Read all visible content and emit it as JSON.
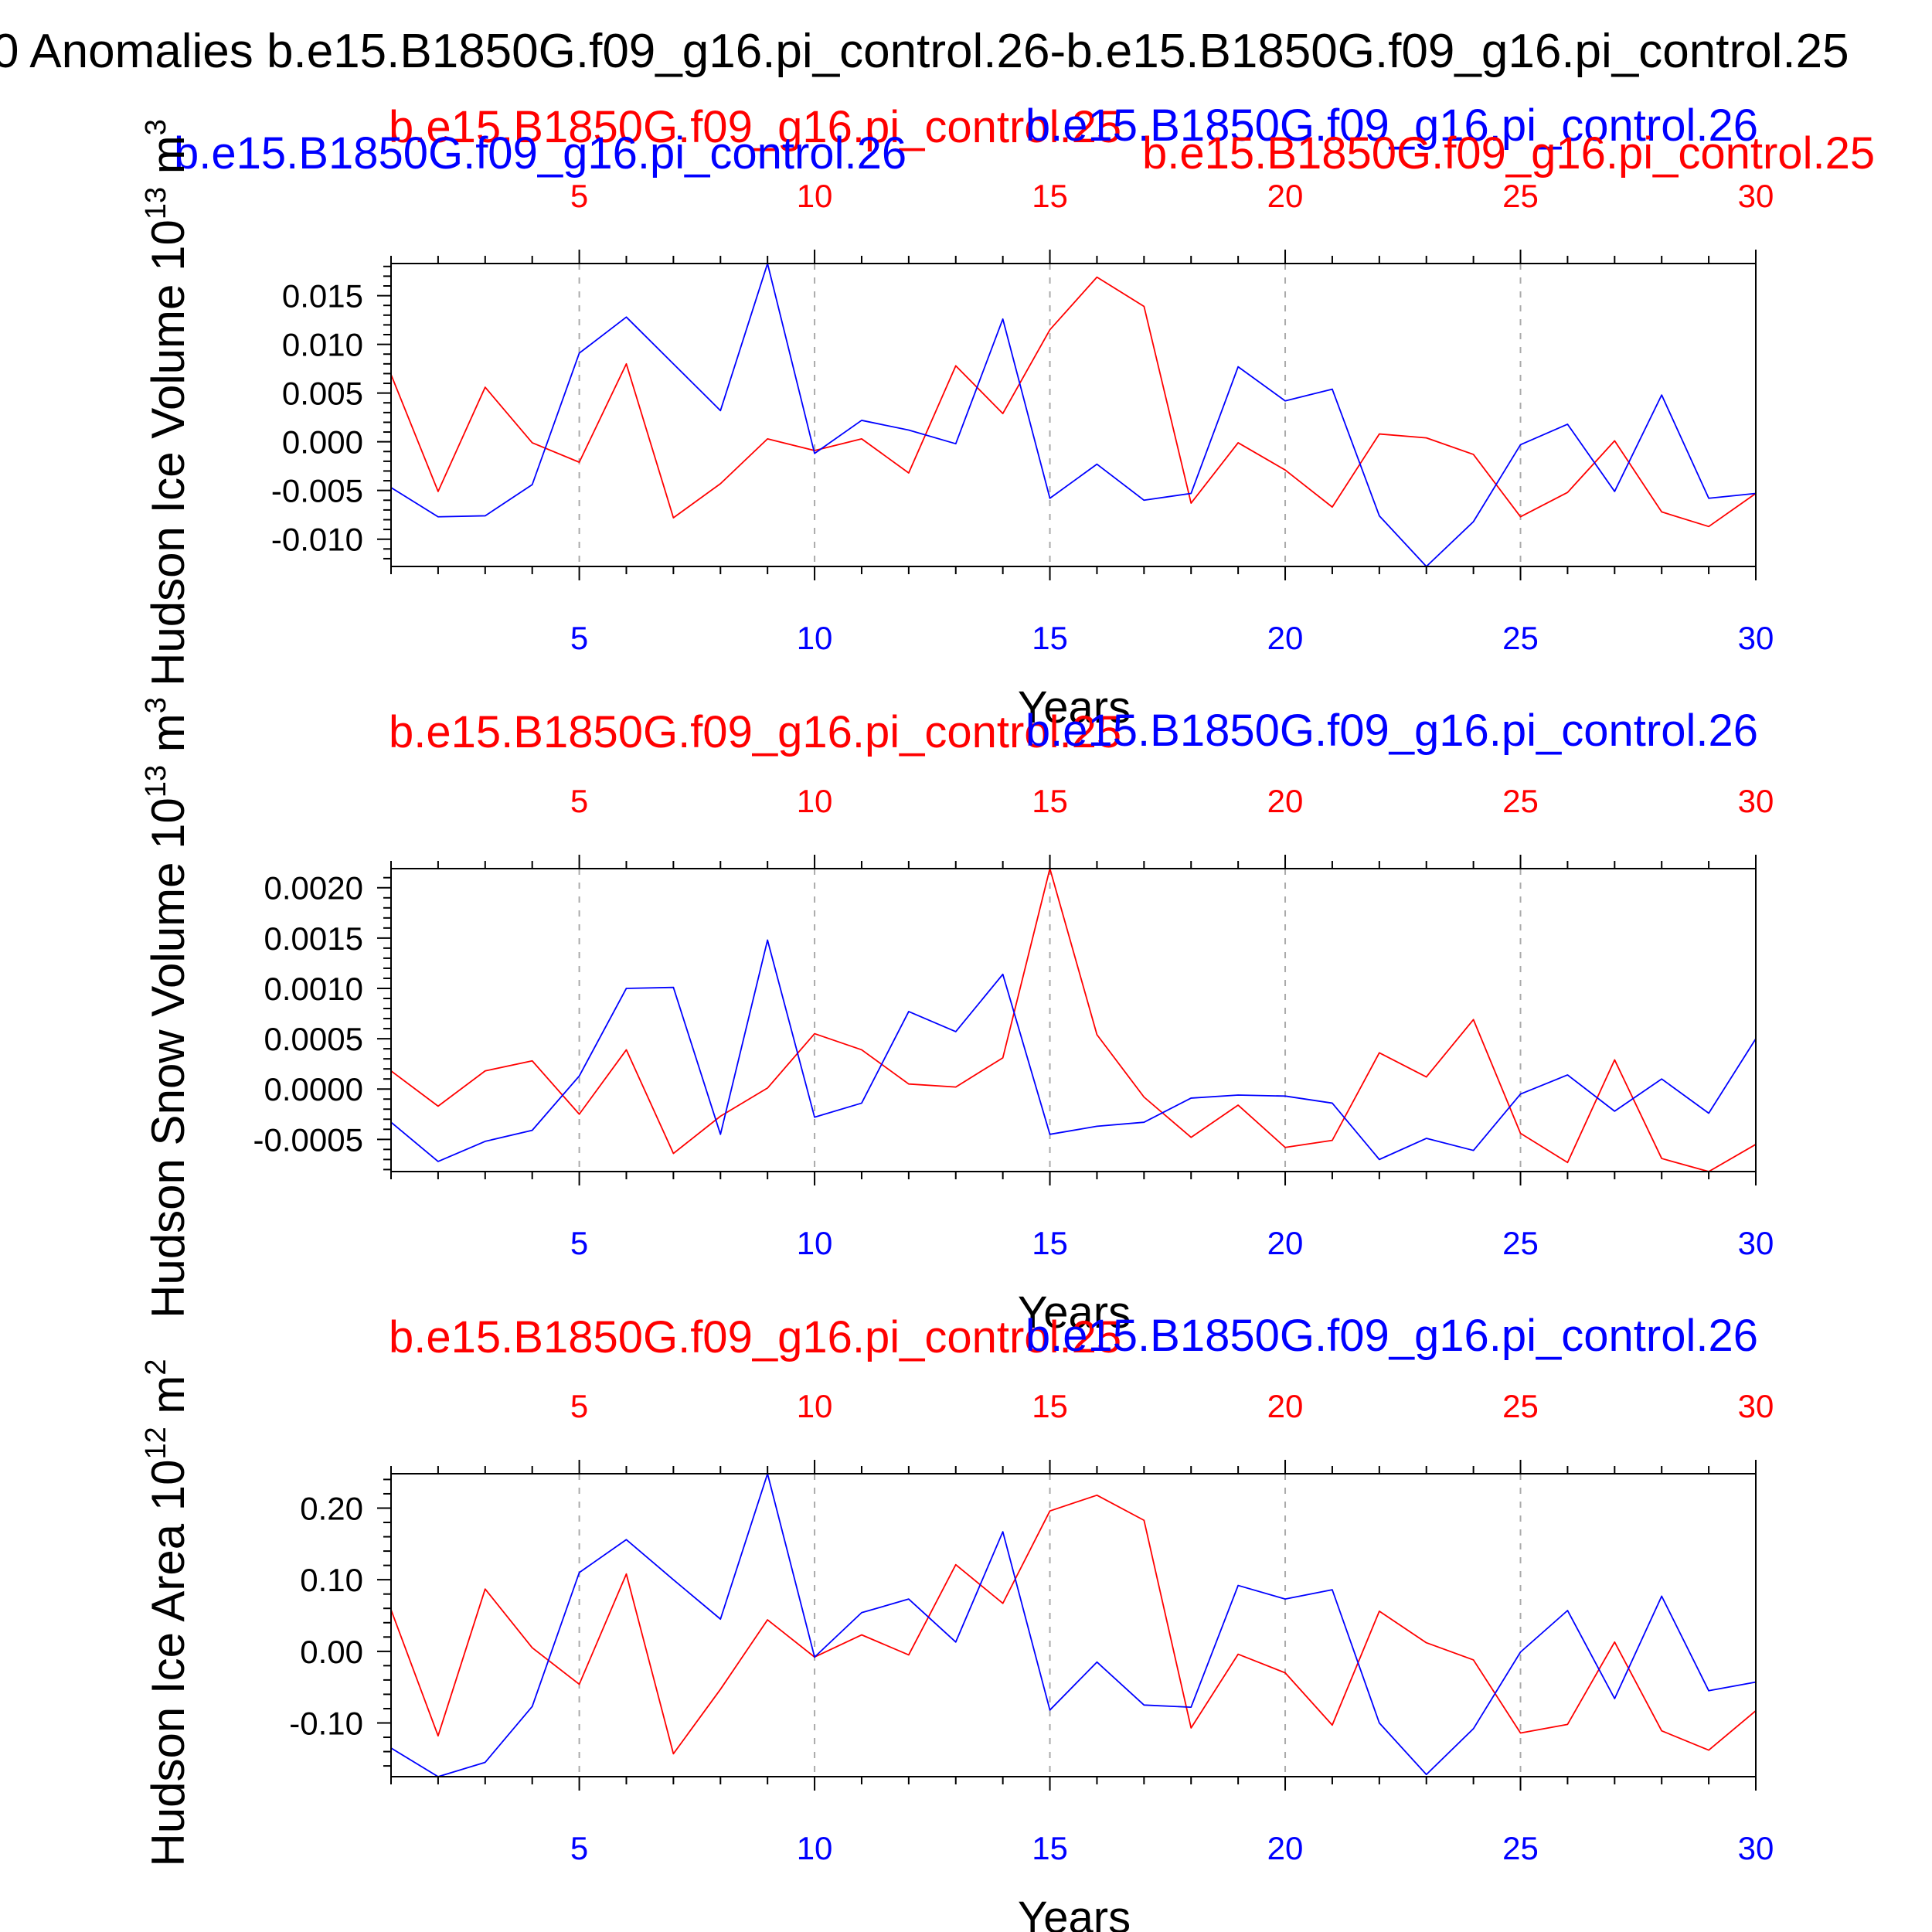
{
  "page_title": "0 Anomalies b.e15.B1850G.f09_g16.pi_control.26-b.e15.B1850G.f09_g16.pi_control.25",
  "colors": {
    "series_26": "#0000ff",
    "series_25": "#ff0000",
    "axis": "#000000",
    "grid": "#aaaaaa"
  },
  "chart_data": [
    {
      "type": "line",
      "panel": "top",
      "ylabel": "Hudson Ice Volume 10",
      "ylabel_exp": "13",
      "ylabel_unit": "m",
      "ylabel_unit_exp": "3",
      "xlabel": "Years",
      "xlim": [
        1,
        30
      ],
      "ylim": [
        -0.0128,
        0.0183
      ],
      "x_ticks": [
        5,
        10,
        15,
        20,
        25,
        30
      ],
      "y_ticks": [
        -0.01,
        -0.005,
        0.0,
        0.005,
        0.01,
        0.015
      ],
      "y_tick_labels": [
        "-0.010",
        "-0.005",
        "0.000",
        "0.005",
        "0.010",
        "0.015"
      ],
      "x": [
        1,
        2,
        3,
        4,
        5,
        6,
        7,
        8,
        9,
        10,
        11,
        12,
        13,
        14,
        15,
        16,
        17,
        18,
        19,
        20,
        21,
        22,
        23,
        24,
        25,
        26,
        27,
        28,
        29,
        30
      ],
      "series": [
        {
          "name": "b.e15.B1850G.f09_g16.pi_control.26",
          "color": "#0000ff",
          "values": [
            -0.0047,
            -0.0077,
            -0.0076,
            -0.0044,
            0.0091,
            0.0128,
            0.008,
            0.0032,
            0.0183,
            -0.0012,
            0.0022,
            0.0012,
            -0.0002,
            0.0126,
            -0.0058,
            -0.0023,
            -0.006,
            -0.0053,
            0.0077,
            0.0042,
            0.0054,
            -0.0076,
            -0.0128,
            -0.0082,
            -0.0003,
            0.0018,
            -0.0051,
            0.0048,
            -0.0058,
            -0.0053
          ]
        },
        {
          "name": "b.e15.B1850G.f09_g16.pi_control.25",
          "color": "#ff0000",
          "values": [
            0.0069,
            -0.0051,
            0.0056,
            -0.0001,
            -0.0021,
            0.008,
            -0.0078,
            -0.0043,
            0.0003,
            -0.0009,
            0.0003,
            -0.0032,
            0.0078,
            0.0029,
            0.0115,
            0.0169,
            0.0139,
            -0.0063,
            -0.0001,
            -0.0029,
            -0.0067,
            0.0008,
            0.0004,
            -0.0013,
            -0.0077,
            -0.0052,
            0.0001,
            -0.0072,
            -0.0087,
            -0.0053
          ]
        }
      ]
    },
    {
      "type": "line",
      "panel": "middle",
      "ylabel": "Hudson Snow Volume 10",
      "ylabel_exp": "13",
      "ylabel_unit": "m",
      "ylabel_unit_exp": "3",
      "xlabel": "Years",
      "xlim": [
        1,
        30
      ],
      "ylim": [
        -0.00082,
        0.00219
      ],
      "x_ticks": [
        5,
        10,
        15,
        20,
        25,
        30
      ],
      "y_ticks": [
        -0.0005,
        0.0,
        0.0005,
        0.001,
        0.0015,
        0.002
      ],
      "y_tick_labels": [
        "-0.0005",
        "0.0000",
        "0.0005",
        "0.0010",
        "0.0015",
        "0.0020"
      ],
      "x": [
        1,
        2,
        3,
        4,
        5,
        6,
        7,
        8,
        9,
        10,
        11,
        12,
        13,
        14,
        15,
        16,
        17,
        18,
        19,
        20,
        21,
        22,
        23,
        24,
        25,
        26,
        27,
        28,
        29,
        30
      ],
      "series": [
        {
          "name": "b.e15.B1850G.f09_g16.pi_control.26",
          "color": "#0000ff",
          "values": [
            -0.00033,
            -0.00072,
            -0.00052,
            -0.00041,
            0.00013,
            0.001,
            0.00101,
            -0.00045,
            0.00148,
            -0.00028,
            -0.00014,
            0.00077,
            0.00057,
            0.00114,
            -0.00045,
            -0.00037,
            -0.00033,
            -9e-05,
            -6e-05,
            -7e-05,
            -0.00014,
            -0.0007,
            -0.00049,
            -0.00061,
            -5e-05,
            0.00014,
            -0.00022,
            0.0001,
            -0.00024,
            0.0005
          ]
        },
        {
          "name": "b.e15.B1850G.f09_g16.pi_control.25",
          "color": "#ff0000",
          "values": [
            0.00018,
            -0.00017,
            0.00018,
            0.00028,
            -0.00025,
            0.00039,
            -0.00064,
            -0.00027,
            1e-05,
            0.00055,
            0.00039,
            5e-05,
            2e-05,
            0.00031,
            0.00219,
            0.00054,
            -8e-05,
            -0.00048,
            -0.00016,
            -0.00058,
            -0.00051,
            0.00036,
            0.00012,
            0.00069,
            -0.00044,
            -0.00073,
            0.00029,
            -0.00069,
            -0.00082,
            -0.00055
          ]
        }
      ]
    },
    {
      "type": "line",
      "panel": "bottom",
      "ylabel": "Hudson Ice Area 10",
      "ylabel_exp": "12",
      "ylabel_unit": "m",
      "ylabel_unit_exp": "2",
      "xlabel": "Years",
      "xlim": [
        1,
        30
      ],
      "ylim": [
        -0.175,
        0.248
      ],
      "x_ticks": [
        5,
        10,
        15,
        20,
        25,
        30
      ],
      "y_ticks": [
        -0.1,
        0.0,
        0.1,
        0.2
      ],
      "y_tick_labels": [
        "-0.10",
        "0.00",
        "0.10",
        "0.20"
      ],
      "x": [
        1,
        2,
        3,
        4,
        5,
        6,
        7,
        8,
        9,
        10,
        11,
        12,
        13,
        14,
        15,
        16,
        17,
        18,
        19,
        20,
        21,
        22,
        23,
        24,
        25,
        26,
        27,
        28,
        29,
        30
      ],
      "series": [
        {
          "name": "b.e15.B1850G.f09_g16.pi_control.26",
          "color": "#0000ff",
          "values": [
            -0.135,
            -0.175,
            -0.155,
            -0.077,
            0.11,
            0.156,
            0.1,
            0.045,
            0.248,
            -0.008,
            0.054,
            0.073,
            0.013,
            0.167,
            -0.082,
            -0.015,
            -0.075,
            -0.078,
            0.092,
            0.073,
            0.086,
            -0.1,
            -0.172,
            -0.108,
            -0.001,
            0.057,
            -0.066,
            0.077,
            -0.055,
            -0.043
          ]
        },
        {
          "name": "b.e15.B1850G.f09_g16.pi_control.25",
          "color": "#ff0000",
          "values": [
            0.058,
            -0.118,
            0.087,
            0.005,
            -0.046,
            0.108,
            -0.143,
            -0.053,
            0.044,
            -0.008,
            0.023,
            -0.005,
            0.121,
            0.067,
            0.196,
            0.218,
            0.183,
            -0.107,
            -0.004,
            -0.03,
            -0.103,
            0.056,
            0.012,
            -0.012,
            -0.114,
            -0.102,
            0.013,
            -0.111,
            -0.138,
            -0.083
          ]
        }
      ]
    }
  ]
}
